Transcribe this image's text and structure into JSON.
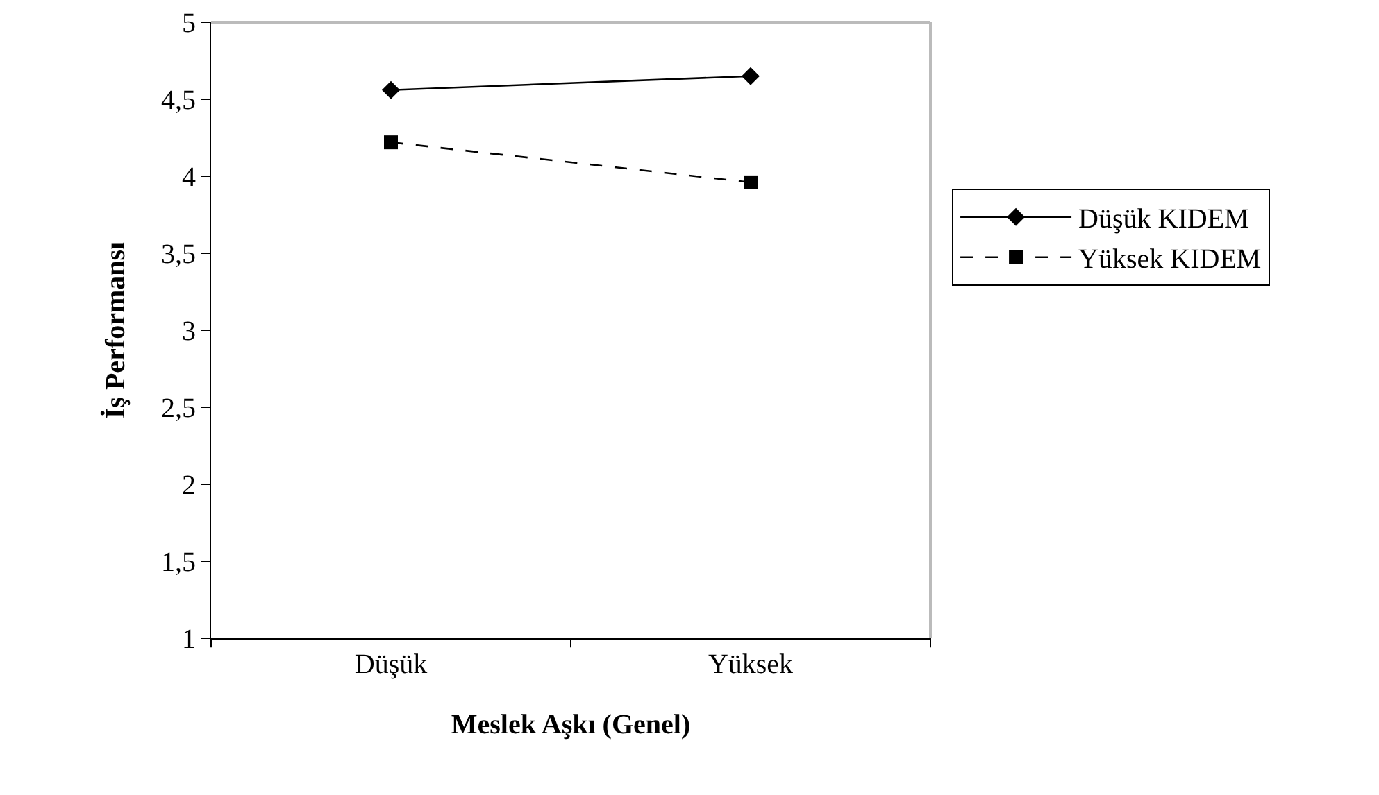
{
  "chart_data": {
    "type": "line",
    "xlabel": "Meslek Aşkı (Genel)",
    "ylabel": "İş Performansı",
    "categories": [
      "Düşük",
      "Yüksek"
    ],
    "ylim": [
      1,
      5
    ],
    "yticks": [
      1,
      {
        "value": 1.5,
        "label": "1,5"
      },
      2,
      {
        "value": 2.5,
        "label": "2,5"
      },
      3,
      {
        "value": 3.5,
        "label": "3,5"
      },
      4,
      {
        "value": 4.5,
        "label": "4,5"
      },
      5
    ],
    "grid": false,
    "legend": "right",
    "series": [
      {
        "name": "Düşük KIDEM",
        "color": "#000000",
        "marker": "diamond",
        "line_style": "solid",
        "values": [
          4.56,
          4.65
        ]
      },
      {
        "name": "Yüksek KIDEM",
        "color": "#000000",
        "marker": "square",
        "line_style": "dashed",
        "values": [
          4.22,
          3.96
        ]
      }
    ]
  }
}
